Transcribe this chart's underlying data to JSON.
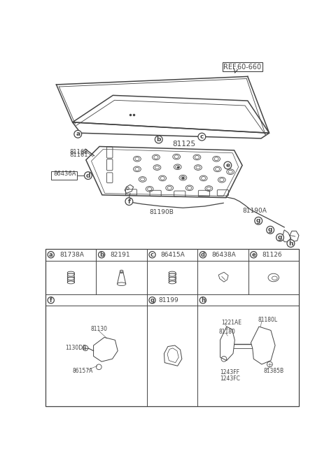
{
  "bg_color": "#ffffff",
  "line_color": "#444444",
  "fig_width": 4.8,
  "fig_height": 6.55,
  "dpi": 100,
  "ref_label": "REF.60-660",
  "main_label": "81125",
  "label_81190A": "81190A",
  "label_81190B": "81190B",
  "label_81162": "81162",
  "label_81161": "81161",
  "label_86436A": "86436A",
  "row1": [
    {
      "letter": "a",
      "part": "81738A"
    },
    {
      "letter": "b",
      "part": "82191"
    },
    {
      "letter": "c",
      "part": "86415A"
    },
    {
      "letter": "d",
      "part": "86438A"
    },
    {
      "letter": "e",
      "part": "81126"
    }
  ],
  "row2_f_labels": [
    "81130",
    "1130DB",
    "86157A"
  ],
  "row2_g_label": "81199",
  "row2_h_labels": [
    "1221AE",
    "81180",
    "1243FF",
    "1243FC",
    "81180L",
    "81385B"
  ]
}
